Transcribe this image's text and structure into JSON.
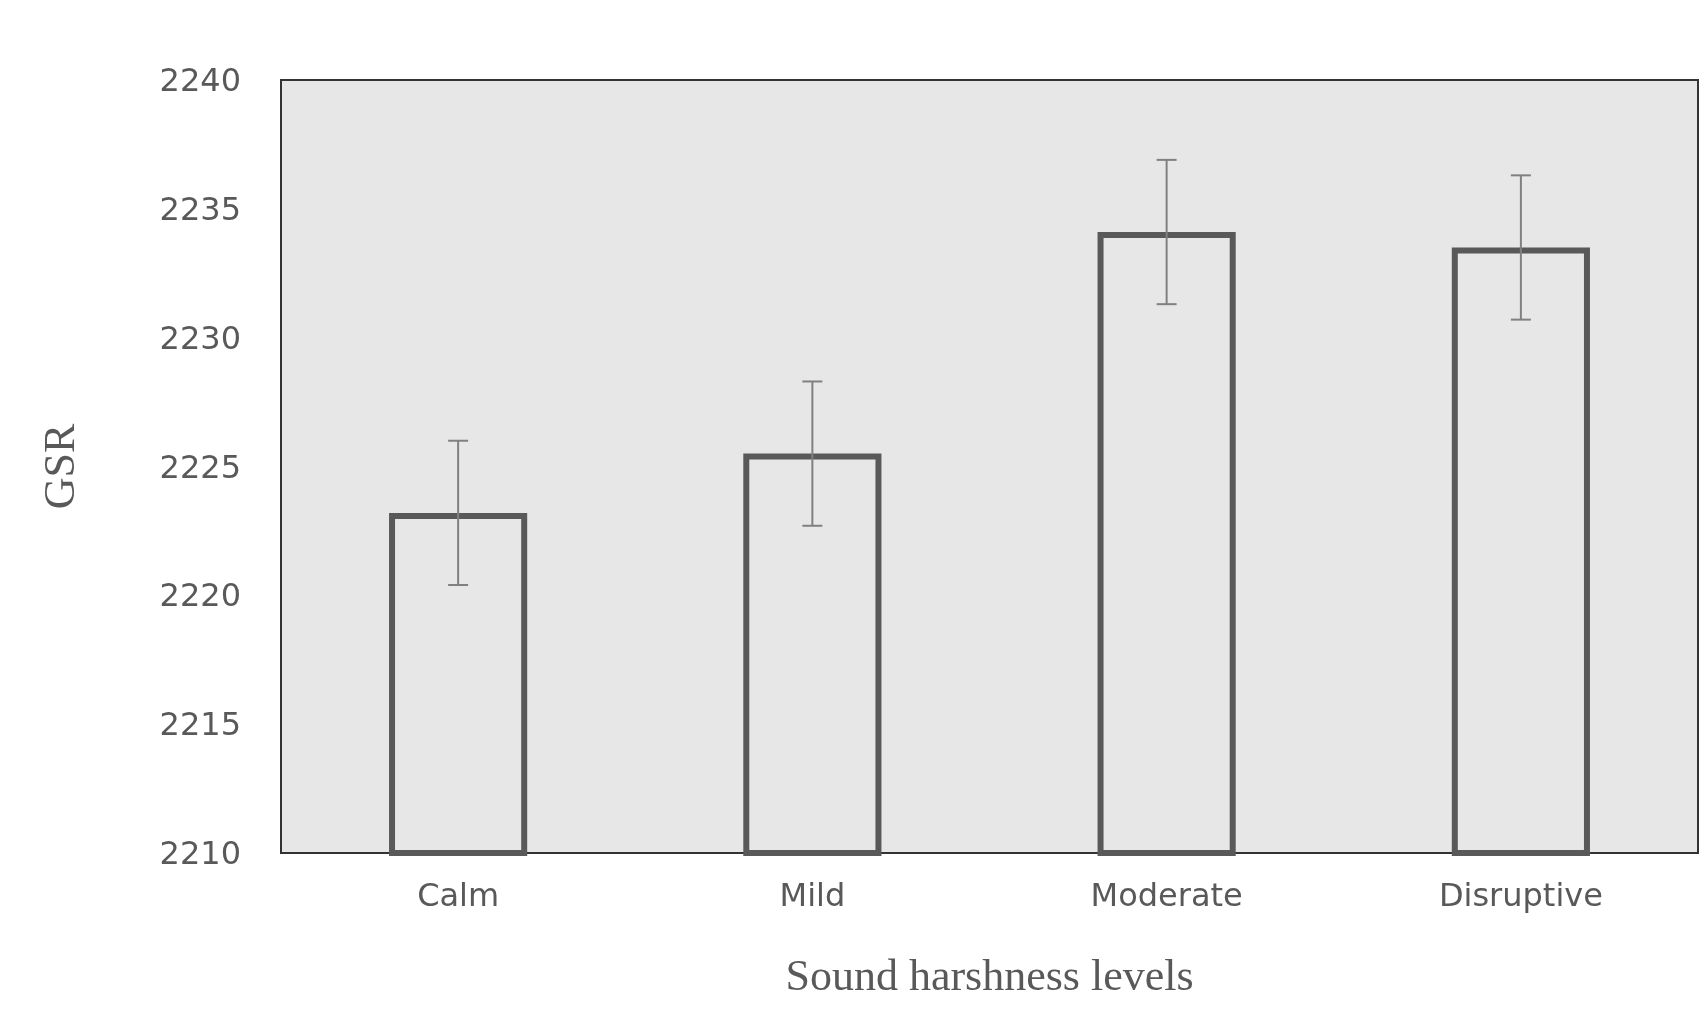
{
  "chart_data": {
    "type": "bar",
    "xlabel": "Sound harshness levels",
    "ylabel": "GSR",
    "categories": [
      "Calm",
      "Mild",
      "Moderate",
      "Disruptive"
    ],
    "values": [
      2223.2,
      2225.5,
      2234.1,
      2233.5
    ],
    "errors": [
      2.8,
      2.8,
      2.8,
      2.8
    ],
    "color": "#595959",
    "ylim": [
      2210,
      2240
    ],
    "yticks": [
      2210,
      2215,
      2220,
      2225,
      2230,
      2235,
      2240
    ],
    "grid": false
  }
}
